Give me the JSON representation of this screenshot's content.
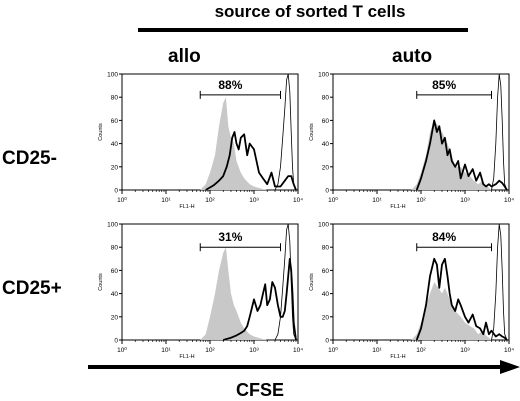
{
  "header": {
    "title": "source of sorted T cells"
  },
  "columns": [
    "allo",
    "auto"
  ],
  "rows": [
    "CD25-",
    "CD25+"
  ],
  "bottom_label": "CFSE",
  "colors": {
    "shaded": "#c8c8c8",
    "black": "#000000"
  },
  "chart_data": [
    {
      "type": "area",
      "panel": "CD25- allo",
      "ylabel": "Counts",
      "xlabel": "FL1-H",
      "xscale": "log",
      "xlim": [
        1,
        10000
      ],
      "ylim": [
        0,
        100
      ],
      "yticks": [
        "0",
        "20",
        "40",
        "60",
        "80",
        "100"
      ],
      "xticks": [
        "10⁰",
        "10¹",
        "10²",
        "10³",
        "10⁴"
      ],
      "gate": {
        "x_range": [
          60,
          4000
        ],
        "y": 82,
        "label": "88%"
      },
      "series": [
        {
          "role": "shaded",
          "x": [
            60,
            80,
            100,
            130,
            160,
            200,
            230,
            260,
            300,
            350,
            400,
            500,
            600,
            800,
            1000,
            1500,
            2000
          ],
          "y": [
            0,
            5,
            15,
            30,
            55,
            75,
            80,
            55,
            45,
            40,
            25,
            15,
            10,
            5,
            3,
            1,
            0
          ]
        },
        {
          "role": "bold",
          "x": [
            80,
            120,
            160,
            200,
            240,
            280,
            320,
            360,
            400,
            450,
            500,
            600,
            700,
            800,
            1000,
            1300,
            1600,
            2000,
            2500,
            3000,
            3500,
            4000,
            5000,
            6000,
            7000,
            8000,
            9000
          ],
          "y": [
            0,
            4,
            8,
            12,
            20,
            30,
            45,
            50,
            40,
            35,
            45,
            48,
            30,
            40,
            35,
            15,
            10,
            5,
            15,
            3,
            3,
            3,
            8,
            12,
            12,
            5,
            0
          ]
        },
        {
          "role": "thin",
          "x": [
            3000,
            3500,
            4000,
            4500,
            5000,
            5500,
            6000,
            6500,
            7000,
            7500,
            8000,
            9000
          ],
          "y": [
            0,
            5,
            20,
            45,
            70,
            95,
            100,
            85,
            50,
            20,
            5,
            0
          ]
        }
      ]
    },
    {
      "type": "area",
      "panel": "CD25- auto",
      "ylabel": "Counts",
      "xlabel": "FL1-H",
      "xscale": "log",
      "xlim": [
        1,
        10000
      ],
      "ylim": [
        0,
        100
      ],
      "yticks": [
        "0",
        "20",
        "40",
        "60",
        "80",
        "100"
      ],
      "xticks": [
        "10⁰",
        "10¹",
        "10²",
        "10³",
        "10⁴"
      ],
      "gate": {
        "x_range": [
          80,
          4000
        ],
        "y": 82,
        "label": "85%"
      },
      "series": [
        {
          "role": "shaded",
          "x": [
            60,
            80,
            100,
            130,
            160,
            200,
            250,
            300,
            350,
            400,
            500,
            600,
            800,
            1000,
            1300,
            1600,
            2000,
            2500,
            3000,
            4000
          ],
          "y": [
            0,
            5,
            15,
            30,
            50,
            60,
            55,
            50,
            45,
            40,
            30,
            20,
            20,
            15,
            12,
            8,
            5,
            8,
            4,
            0
          ]
        },
        {
          "role": "bold",
          "x": [
            80,
            100,
            130,
            160,
            200,
            230,
            260,
            300,
            350,
            400,
            450,
            500,
            600,
            700,
            800,
            1000,
            1200,
            1500,
            1800,
            2200,
            2600,
            3000,
            3500,
            4000,
            5000,
            6000,
            7000,
            8000,
            9000
          ],
          "y": [
            0,
            10,
            25,
            40,
            60,
            50,
            55,
            40,
            45,
            30,
            35,
            25,
            20,
            25,
            10,
            22,
            12,
            18,
            8,
            15,
            5,
            3,
            5,
            3,
            5,
            8,
            6,
            3,
            0
          ]
        },
        {
          "role": "thin",
          "x": [
            4000,
            4500,
            5000,
            5500,
            6000,
            6500,
            7000,
            7500,
            8000,
            9000
          ],
          "y": [
            0,
            10,
            40,
            80,
            100,
            90,
            60,
            25,
            5,
            0
          ]
        }
      ]
    },
    {
      "type": "area",
      "panel": "CD25+ allo",
      "ylabel": "Counts",
      "xlabel": "FL1-H",
      "xscale": "log",
      "xlim": [
        1,
        10000
      ],
      "ylim": [
        0,
        100
      ],
      "yticks": [
        "0",
        "20",
        "40",
        "60",
        "80",
        "100"
      ],
      "xticks": [
        "10⁰",
        "10¹",
        "10²",
        "10³",
        "10⁴"
      ],
      "gate": {
        "x_range": [
          60,
          4000
        ],
        "y": 80,
        "label": "31%"
      },
      "series": [
        {
          "role": "shaded",
          "x": [
            60,
            80,
            100,
            130,
            160,
            200,
            230,
            260,
            300,
            350,
            400,
            500,
            600,
            800,
            1000,
            1500,
            2000
          ],
          "y": [
            0,
            5,
            20,
            40,
            60,
            75,
            80,
            60,
            40,
            30,
            25,
            15,
            10,
            5,
            3,
            1,
            0
          ]
        },
        {
          "role": "bold",
          "x": [
            200,
            300,
            400,
            500,
            600,
            700,
            800,
            1000,
            1200,
            1400,
            1600,
            1800,
            2000,
            2300,
            2600,
            3000,
            3500,
            4000,
            4500,
            5000,
            5500,
            6000,
            6500,
            7000,
            7500,
            8000,
            9000
          ],
          "y": [
            0,
            2,
            4,
            6,
            8,
            12,
            20,
            35,
            25,
            30,
            40,
            48,
            30,
            35,
            50,
            45,
            30,
            20,
            20,
            25,
            40,
            55,
            70,
            60,
            40,
            15,
            0
          ]
        },
        {
          "role": "thin",
          "x": [
            3000,
            3500,
            4000,
            4500,
            5000,
            5500,
            6000,
            6500,
            7000,
            7500,
            8000,
            9000
          ],
          "y": [
            0,
            5,
            20,
            45,
            70,
            95,
            100,
            85,
            50,
            20,
            5,
            0
          ]
        }
      ]
    },
    {
      "type": "area",
      "panel": "CD25+ auto",
      "ylabel": "Counts",
      "xlabel": "FL1-H",
      "xscale": "log",
      "xlim": [
        1,
        10000
      ],
      "ylim": [
        0,
        100
      ],
      "yticks": [
        "0",
        "20",
        "40",
        "60",
        "80",
        "100"
      ],
      "xticks": [
        "10⁰",
        "10¹",
        "10²",
        "10³",
        "10⁴"
      ],
      "gate": {
        "x_range": [
          80,
          4000
        ],
        "y": 80,
        "label": "84%"
      },
      "series": [
        {
          "role": "shaded",
          "x": [
            60,
            80,
            100,
            130,
            160,
            200,
            250,
            300,
            350,
            400,
            500,
            600,
            800,
            1000,
            1300,
            1600,
            2000,
            2500,
            3000,
            4000
          ],
          "y": [
            0,
            5,
            15,
            30,
            40,
            50,
            45,
            40,
            45,
            40,
            30,
            25,
            20,
            15,
            12,
            10,
            5,
            8,
            4,
            0
          ]
        },
        {
          "role": "bold",
          "x": [
            80,
            100,
            130,
            160,
            200,
            230,
            260,
            300,
            350,
            400,
            450,
            500,
            600,
            700,
            800,
            1000,
            1200,
            1500,
            1800,
            2200,
            2600,
            3000,
            3500,
            4000,
            5000,
            6000,
            7000,
            8000,
            9000
          ],
          "y": [
            0,
            10,
            30,
            55,
            70,
            65,
            45,
            65,
            70,
            55,
            40,
            30,
            25,
            35,
            30,
            20,
            15,
            22,
            12,
            10,
            5,
            15,
            5,
            8,
            3,
            5,
            3,
            2,
            0
          ]
        },
        {
          "role": "thin",
          "x": [
            4000,
            4500,
            5000,
            5500,
            6000,
            6500,
            7000,
            7500,
            8000,
            9000
          ],
          "y": [
            0,
            10,
            40,
            80,
            100,
            90,
            60,
            25,
            5,
            0
          ]
        }
      ]
    }
  ]
}
